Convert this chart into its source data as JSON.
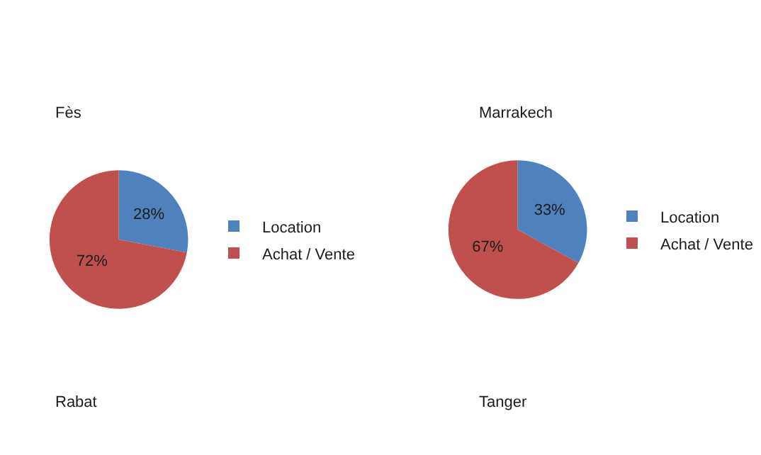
{
  "chart_data": [
    {
      "type": "pie",
      "title": "Fès",
      "categories": [
        "Location",
        "Achat / Vente"
      ],
      "values": [
        28,
        72
      ],
      "colors": [
        "#4f81bd",
        "#c0504d"
      ],
      "value_labels": [
        "28%",
        "72%"
      ],
      "legend": "right"
    },
    {
      "type": "pie",
      "title": "Marrakech",
      "categories": [
        "Location",
        "Achat / Vente"
      ],
      "values": [
        33,
        67
      ],
      "colors": [
        "#4f81bd",
        "#c0504d"
      ],
      "value_labels": [
        "33%",
        "67%"
      ],
      "legend": "right"
    },
    {
      "type": "other",
      "title": "Rabat"
    },
    {
      "type": "other",
      "title": "Tanger"
    }
  ]
}
